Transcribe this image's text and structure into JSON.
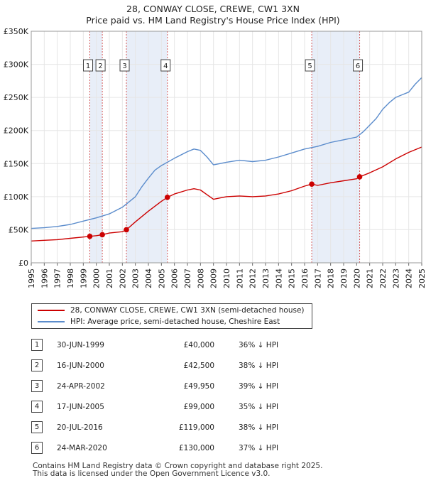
{
  "title_line1": "28, CONWAY CLOSE, CREWE, CW1 3XN",
  "title_line2": "Price paid vs. HM Land Registry's House Price Index (HPI)",
  "colors": {
    "property": "#cc0000",
    "hpi": "#5b8ccc",
    "band": "#e8eef8",
    "marker_line": "#d45a5a",
    "grid": "#e6e6e6"
  },
  "legend": {
    "property_label": "28, CONWAY CLOSE, CREWE, CW1 3XN (semi-detached house)",
    "hpi_label": "HPI: Average price, semi-detached house, Cheshire East"
  },
  "sales": [
    {
      "num": "1",
      "date": "30-JUN-1999",
      "price": "£40,000",
      "hpi": "36% ↓ HPI"
    },
    {
      "num": "2",
      "date": "16-JUN-2000",
      "price": "£42,500",
      "hpi": "38% ↓ HPI"
    },
    {
      "num": "3",
      "date": "24-APR-2002",
      "price": "£49,950",
      "hpi": "39% ↓ HPI"
    },
    {
      "num": "4",
      "date": "17-JUN-2005",
      "price": "£99,000",
      "hpi": "35% ↓ HPI"
    },
    {
      "num": "5",
      "date": "20-JUL-2016",
      "price": "£119,000",
      "hpi": "38% ↓ HPI"
    },
    {
      "num": "6",
      "date": "24-MAR-2020",
      "price": "£130,000",
      "hpi": "37% ↓ HPI"
    }
  ],
  "footer_line1": "Contains HM Land Registry data © Crown copyright and database right 2025.",
  "footer_line2": "This data is licensed under the Open Government Licence v3.0.",
  "chart_data": {
    "type": "line",
    "title": "28, CONWAY CLOSE, CREWE, CW1 3XN — Price paid vs. HM Land Registry's House Price Index (HPI)",
    "xlabel": "",
    "ylabel": "",
    "xlim": [
      1995,
      2025
    ],
    "ylim": [
      0,
      350000
    ],
    "y_ticks": [
      0,
      50000,
      100000,
      150000,
      200000,
      250000,
      300000,
      350000
    ],
    "y_tick_labels": [
      "£0",
      "£50K",
      "£100K",
      "£150K",
      "£200K",
      "£250K",
      "£300K",
      "£350K"
    ],
    "x_ticks": [
      1995,
      1996,
      1997,
      1998,
      1999,
      2000,
      2001,
      2002,
      2003,
      2004,
      2005,
      2006,
      2007,
      2008,
      2009,
      2010,
      2011,
      2012,
      2013,
      2014,
      2015,
      2016,
      2017,
      2018,
      2019,
      2020,
      2021,
      2022,
      2023,
      2024,
      2025
    ],
    "x_tick_labels": [
      "1995",
      "1996",
      "1997",
      "1998",
      "1999",
      "2000",
      "2001",
      "2002",
      "2003",
      "2004",
      "2005",
      "2006",
      "2007",
      "2008",
      "2009",
      "2010",
      "2011",
      "2012",
      "2013",
      "2014",
      "2015",
      "2016",
      "2017",
      "2018",
      "2019",
      "2020",
      "2021",
      "2022",
      "2023",
      "2024",
      "2025"
    ],
    "shaded_bands": [
      [
        1999.5,
        2000.46
      ],
      [
        2002.31,
        2005.46
      ],
      [
        2016.55,
        2020.23
      ]
    ],
    "sale_markers": [
      {
        "label": "1",
        "x": 1999.5,
        "y": 40000
      },
      {
        "label": "2",
        "x": 2000.46,
        "y": 42500
      },
      {
        "label": "3",
        "x": 2002.31,
        "y": 49950
      },
      {
        "label": "4",
        "x": 2005.46,
        "y": 99000
      },
      {
        "label": "5",
        "x": 2016.55,
        "y": 119000
      },
      {
        "label": "6",
        "x": 2020.23,
        "y": 130000
      }
    ],
    "series": [
      {
        "name": "HPI: Average price, semi-detached house, Cheshire East",
        "x": [
          1995,
          1996,
          1997,
          1998,
          1999,
          2000,
          2001,
          2002,
          2003,
          2003.5,
          2004,
          2004.5,
          2005,
          2006,
          2007,
          2007.5,
          2008,
          2008.5,
          2009,
          2009.5,
          2010,
          2011,
          2012,
          2013,
          2014,
          2015,
          2016,
          2017,
          2018,
          2019,
          2020,
          2020.5,
          2021,
          2021.5,
          2022,
          2022.5,
          2023,
          2023.5,
          2024,
          2024.5,
          2025
        ],
        "values": [
          52000,
          53000,
          55000,
          58000,
          63000,
          68000,
          74000,
          84000,
          100000,
          115000,
          128000,
          140000,
          147000,
          158000,
          168000,
          172000,
          170000,
          160000,
          148000,
          150000,
          152000,
          155000,
          153000,
          155000,
          160000,
          166000,
          172000,
          176000,
          182000,
          186000,
          190000,
          198000,
          208000,
          218000,
          232000,
          242000,
          250000,
          254000,
          258000,
          270000,
          280000
        ]
      },
      {
        "name": "28, CONWAY CLOSE, CREWE, CW1 3XN (semi-detached house)",
        "x": [
          1995,
          1996,
          1997,
          1998,
          1999,
          1999.5,
          2000,
          2000.46,
          2001,
          2002,
          2002.31,
          2003,
          2004,
          2005,
          2005.46,
          2006,
          2007,
          2007.5,
          2008,
          2008.5,
          2009,
          2009.5,
          2010,
          2011,
          2012,
          2013,
          2014,
          2015,
          2016,
          2016.55,
          2017,
          2018,
          2019,
          2020,
          2020.23,
          2021,
          2022,
          2023,
          2024,
          2025
        ],
        "values": [
          33000,
          34000,
          35000,
          37000,
          39000,
          40000,
          41000,
          42500,
          45000,
          47000,
          49950,
          62000,
          78000,
          93000,
          99000,
          104000,
          110000,
          112000,
          110000,
          103000,
          96000,
          98000,
          100000,
          101000,
          100000,
          101000,
          104000,
          109000,
          116000,
          119000,
          117000,
          121000,
          124000,
          127000,
          130000,
          136000,
          145000,
          157000,
          167000,
          175000
        ]
      }
    ]
  }
}
